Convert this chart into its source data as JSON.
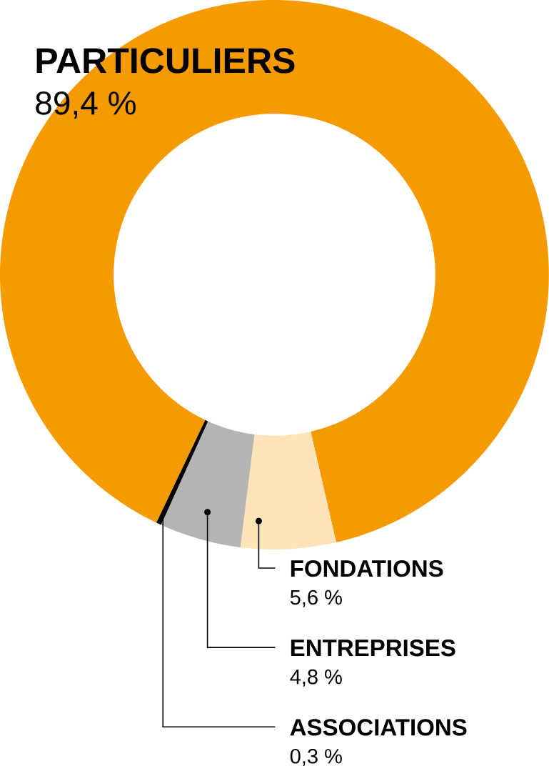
{
  "chart_data": {
    "type": "donut",
    "categories": [
      "PARTICULIERS",
      "FONDATIONS",
      "ENTREPRISES",
      "ASSOCIATIONS"
    ],
    "values": [
      89.4,
      5.6,
      4.8,
      0.3
    ],
    "colors": [
      "#f59a00",
      "#fde3b8",
      "#b5b3b4",
      "#000000"
    ],
    "value_labels": [
      "89,4 %",
      "5,6 %",
      "4,8 %",
      "0,3 %"
    ]
  }
}
